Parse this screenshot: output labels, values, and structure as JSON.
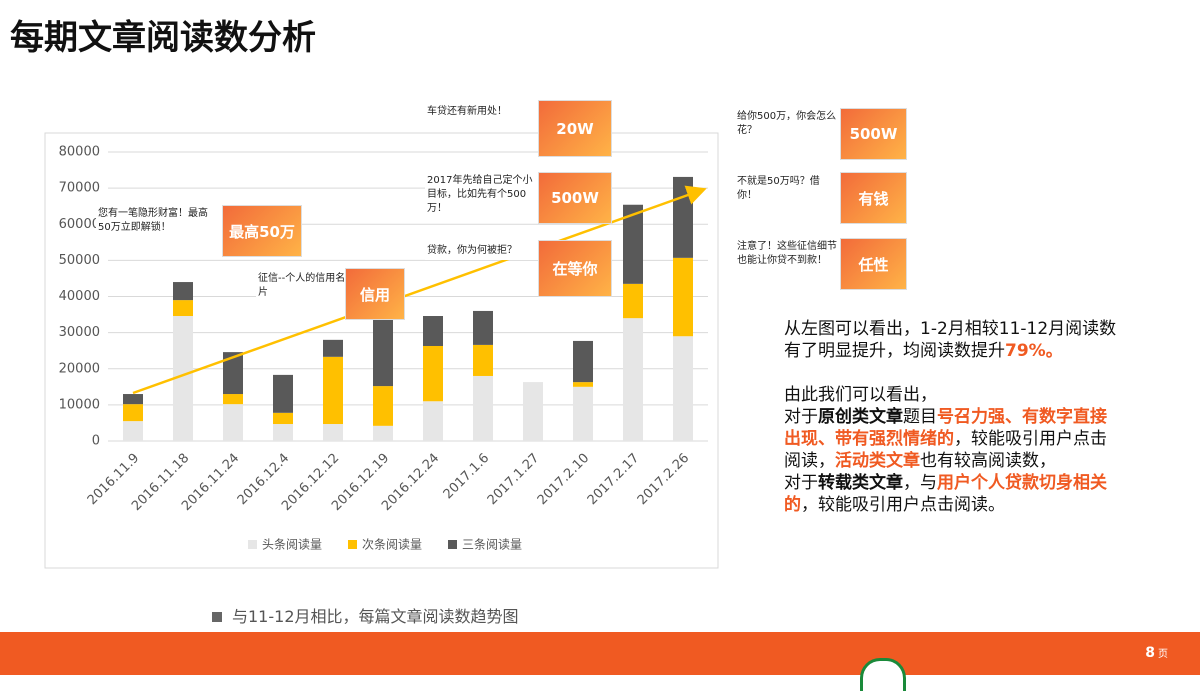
{
  "title": "每期文章阅读数分析",
  "chart_data": {
    "type": "stacked_bar",
    "categories": [
      "2016.11.9",
      "2016.11.18",
      "2016.11.24",
      "2016.12.4",
      "2016.12.12",
      "2016.12.19",
      "2016.12.24",
      "2017.1.6",
      "2017.1.27",
      "2017.2.10",
      "2017.2.17",
      "2017.2.26"
    ],
    "series": [
      {
        "name": "头条阅读量",
        "color": "#e6e6e6",
        "values": [
          5500,
          34600,
          10200,
          4700,
          4700,
          4200,
          11000,
          18000,
          16300,
          15000,
          34000,
          29000
        ]
      },
      {
        "name": "次条阅读量",
        "color": "#ffc000",
        "values": [
          4700,
          4400,
          2800,
          3100,
          18600,
          11000,
          15300,
          8600,
          0,
          1300,
          9500,
          21700
        ]
      },
      {
        "name": "三条阅读量",
        "color": "#595959",
        "values": [
          2800,
          5000,
          11600,
          10500,
          4700,
          18300,
          8300,
          9400,
          0,
          11400,
          21900,
          22400
        ]
      }
    ],
    "ylim": [
      0,
      80000
    ],
    "yticks": [
      0,
      10000,
      20000,
      30000,
      40000,
      50000,
      60000,
      70000,
      80000
    ],
    "grid": true,
    "legend": "bottom"
  },
  "caption": "与11-12月相比，每篇文章阅读数趋势图",
  "callouts": [
    {
      "text": "您有一笔隐形财富！最高50万立即解锁！",
      "image": "最高50万"
    },
    {
      "text": "征信--个人的信用名片",
      "image": "信用"
    },
    {
      "text": "车贷还有新用处！",
      "image": "20W"
    },
    {
      "text": "2017年先给自己定个小目标，比如先有个500万！",
      "image": "500W"
    },
    {
      "text": "贷款，你为何被拒？",
      "image": "在等你"
    },
    {
      "text": "给你500万，你会怎么花？",
      "image": "500W"
    },
    {
      "text": "不就是50万吗？借你！",
      "image": "有钱"
    },
    {
      "text": "注意了！这些征信细节也能让你贷不到款！",
      "image": "任性"
    }
  ],
  "analysis": [
    [
      [
        {
          "text": "从左图可以看出，1-2月相较11-12月阅读数有了明显提升，均阅读数提升",
          "style": "normal"
        },
        {
          "text": "79%。",
          "style": "orange"
        }
      ]
    ],
    [
      [
        {
          "text": "由此我们可以看出，",
          "style": "normal"
        }
      ],
      [
        {
          "text": "对于",
          "style": "normal"
        },
        {
          "text": "原创类文章",
          "style": "bold"
        },
        {
          "text": "题目",
          "style": "normal"
        },
        {
          "text": "号召力强、有数字直接出现、带有强烈情绪的",
          "style": "orange"
        },
        {
          "text": "，较能吸引用户点击阅读，",
          "style": "normal"
        },
        {
          "text": "活动类文章",
          "style": "orange"
        },
        {
          "text": "也有较高阅读数，",
          "style": "normal"
        }
      ],
      [
        {
          "text": "对于",
          "style": "normal"
        },
        {
          "text": "转载类文章",
          "style": "bold"
        },
        {
          "text": "，与",
          "style": "normal"
        },
        {
          "text": "用户个人贷款切身相关的",
          "style": "orange"
        },
        {
          "text": "，较能吸引用户点击阅读。",
          "style": "normal"
        }
      ]
    ]
  ],
  "page": "8",
  "page_unit": "页"
}
